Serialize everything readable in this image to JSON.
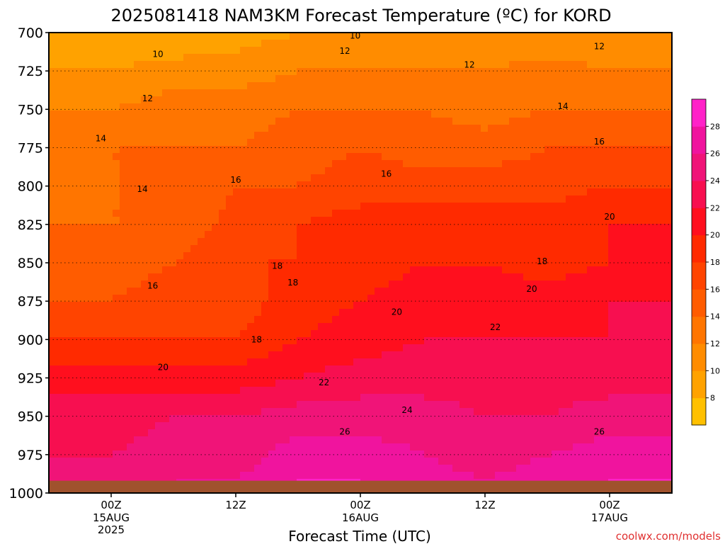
{
  "chart_data": {
    "type": "heatmap",
    "title": "2025081418 NAM3KM Forecast Temperature (ºC) for KORD",
    "xlabel": "Forecast Time (UTC)",
    "ylabel": "",
    "x_ticks": [
      {
        "hour": 6,
        "label": "00Z",
        "date": "15AUG",
        "year": "2025"
      },
      {
        "hour": 18,
        "label": "12Z",
        "date": "",
        "year": ""
      },
      {
        "hour": 30,
        "label": "00Z",
        "date": "16AUG",
        "year": ""
      },
      {
        "hour": 42,
        "label": "12Z",
        "date": "",
        "year": ""
      },
      {
        "hour": 54,
        "label": "00Z",
        "date": "17AUG",
        "year": ""
      }
    ],
    "xlim": [
      0,
      60
    ],
    "y_ticks": [
      700,
      725,
      750,
      775,
      800,
      825,
      850,
      875,
      900,
      925,
      950,
      975,
      1000
    ],
    "ylim": [
      1000,
      700
    ],
    "y_units": "pressure (hPa)",
    "colorbar": {
      "levels": [
        6,
        8,
        10,
        12,
        14,
        16,
        18,
        20,
        22,
        24,
        26,
        28,
        30
      ],
      "tick_labels": [
        "8",
        "10",
        "12",
        "14",
        "16",
        "18",
        "20",
        "22",
        "24",
        "26",
        "28"
      ],
      "colors": [
        "#ffc000",
        "#ffa200",
        "#ff8c00",
        "#ff7500",
        "#ff5c00",
        "#ff4400",
        "#ff2a00",
        "#ff0f1e",
        "#f70f50",
        "#f01478",
        "#f0149e",
        "#ff22c8"
      ]
    },
    "pressure_levels": [
      700,
      725,
      750,
      775,
      800,
      825,
      850,
      875,
      900,
      925,
      950,
      975,
      992
    ],
    "hours": [
      0,
      6,
      12,
      18,
      24,
      30,
      36,
      42,
      48,
      54,
      60
    ],
    "temperature_grid": [
      [
        8,
        8,
        8,
        9,
        10,
        10,
        10,
        10,
        10,
        10,
        10
      ],
      [
        10,
        10,
        11,
        11,
        12,
        12,
        12,
        12,
        13,
        12,
        12
      ],
      [
        12,
        12,
        13,
        13,
        14,
        14,
        14,
        13,
        14,
        14,
        14
      ],
      [
        13,
        14,
        14,
        14,
        15,
        16,
        15,
        15,
        16,
        16,
        16
      ],
      [
        13,
        14,
        14,
        16,
        16,
        17,
        17,
        17,
        17,
        18,
        18
      ],
      [
        14,
        14,
        14,
        17,
        18,
        19,
        19,
        19,
        19,
        20,
        20
      ],
      [
        15,
        15,
        16,
        18,
        18,
        19,
        20,
        20,
        19,
        20,
        20
      ],
      [
        16,
        16,
        17,
        17,
        19,
        20,
        21,
        21,
        21,
        22,
        22
      ],
      [
        18,
        18,
        18,
        18,
        20,
        21,
        22,
        22,
        22,
        22,
        22
      ],
      [
        21,
        21,
        21,
        21,
        22,
        23,
        23,
        23,
        23,
        23,
        23
      ],
      [
        23,
        23,
        24,
        24,
        25,
        25,
        25,
        24,
        24,
        25,
        25
      ],
      [
        24,
        24,
        25,
        25,
        27,
        27,
        26,
        25,
        26,
        27,
        27
      ],
      [
        25,
        25,
        26,
        26,
        28,
        28,
        27,
        26,
        27,
        28,
        28
      ]
    ],
    "contour_labels": [
      {
        "value": "10",
        "hour": 10.5,
        "p": 714
      },
      {
        "value": "10",
        "hour": 29.5,
        "p": 702
      },
      {
        "value": "12",
        "hour": 9.5,
        "p": 743
      },
      {
        "value": "12",
        "hour": 28.5,
        "p": 712
      },
      {
        "value": "12",
        "hour": 40.5,
        "p": 721
      },
      {
        "value": "12",
        "hour": 53.0,
        "p": 709
      },
      {
        "value": "14",
        "hour": 5.0,
        "p": 769
      },
      {
        "value": "14",
        "hour": 9.0,
        "p": 802
      },
      {
        "value": "14",
        "hour": 49.5,
        "p": 748
      },
      {
        "value": "16",
        "hour": 10.0,
        "p": 865
      },
      {
        "value": "16",
        "hour": 18.0,
        "p": 796
      },
      {
        "value": "16",
        "hour": 32.5,
        "p": 792
      },
      {
        "value": "16",
        "hour": 53.0,
        "p": 771
      },
      {
        "value": "18",
        "hour": 22.0,
        "p": 852
      },
      {
        "value": "18",
        "hour": 23.5,
        "p": 863
      },
      {
        "value": "18",
        "hour": 20.0,
        "p": 900
      },
      {
        "value": "18",
        "hour": 47.5,
        "p": 849
      },
      {
        "value": "20",
        "hour": 11.0,
        "p": 918
      },
      {
        "value": "20",
        "hour": 33.5,
        "p": 882
      },
      {
        "value": "20",
        "hour": 46.5,
        "p": 867
      },
      {
        "value": "20",
        "hour": 54.0,
        "p": 820
      },
      {
        "value": "22",
        "hour": 26.5,
        "p": 928
      },
      {
        "value": "22",
        "hour": 43.0,
        "p": 892
      },
      {
        "value": "24",
        "hour": 34.5,
        "p": 946
      },
      {
        "value": "26",
        "hour": 28.5,
        "p": 960
      },
      {
        "value": "26",
        "hour": 53.0,
        "p": 960
      }
    ],
    "legend": "right colorbar",
    "grid": "dotted at each pressure tick"
  },
  "watermark": "coolwx.com/models"
}
